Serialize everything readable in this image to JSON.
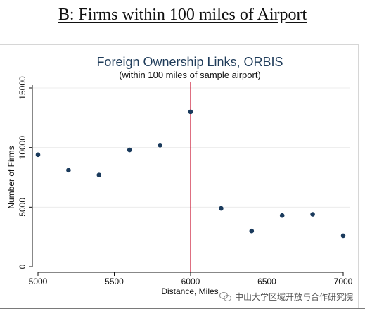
{
  "page": {
    "heading": "B: Firms within 100 miles of Airport",
    "watermark": "中山大学区域开放与合作研究院",
    "watermark_icon": "wechat-icon"
  },
  "chart_data": {
    "type": "scatter",
    "title": "Foreign Ownership Links, ORBIS",
    "subtitle": "(within 100 miles of sample airport)",
    "xlabel": "Distance, Miles",
    "ylabel": "Number of Firms",
    "xlim": [
      5000,
      7000
    ],
    "ylim": [
      0,
      15000
    ],
    "x_ticks": [
      5000,
      5500,
      6000,
      6500,
      7000
    ],
    "y_ticks": [
      0,
      5000,
      10000,
      15000
    ],
    "grid": "horizontal",
    "reference_line": {
      "x": 6000,
      "color": "#c8102e"
    },
    "marker_color": "#1a3a5c",
    "points": [
      {
        "x": 5000,
        "y": 9400
      },
      {
        "x": 5200,
        "y": 8100
      },
      {
        "x": 5400,
        "y": 7700
      },
      {
        "x": 5600,
        "y": 9800
      },
      {
        "x": 5800,
        "y": 10200
      },
      {
        "x": 6000,
        "y": 13000
      },
      {
        "x": 6200,
        "y": 4900
      },
      {
        "x": 6400,
        "y": 3000
      },
      {
        "x": 6600,
        "y": 4300
      },
      {
        "x": 6800,
        "y": 4400
      },
      {
        "x": 7000,
        "y": 2600
      }
    ]
  }
}
